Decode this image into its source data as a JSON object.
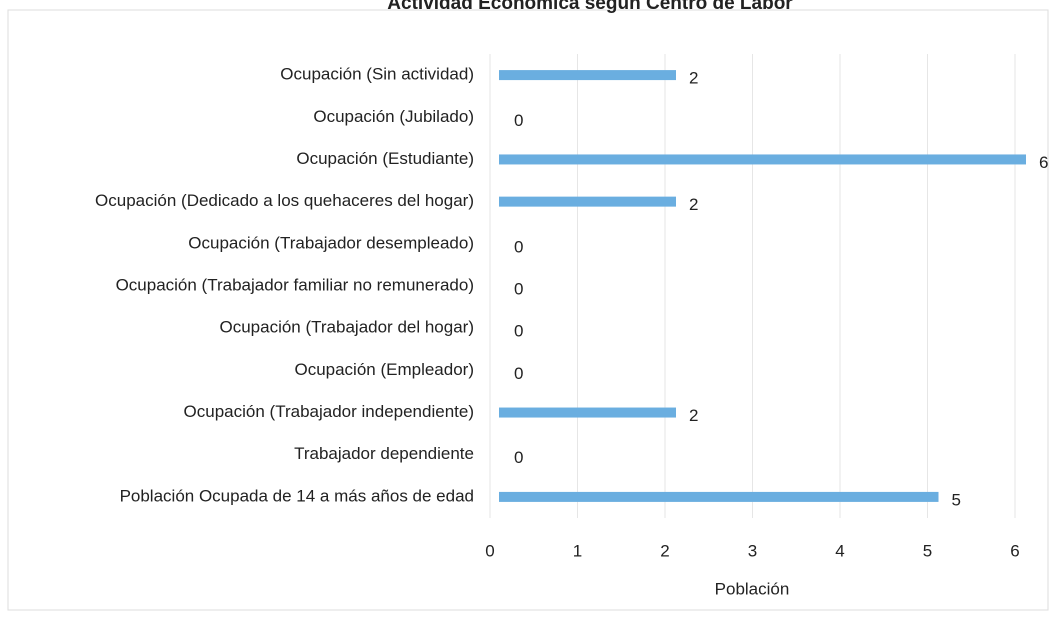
{
  "chart_data": {
    "type": "bar",
    "orientation": "horizontal",
    "title": "Actividad Económica según Centro de Labor",
    "x_label": "Población",
    "categories": [
      "Ocupación (Sin actividad)",
      "Ocupación (Jubilado)",
      "Ocupación (Estudiante)",
      "Ocupación (Dedicado a los quehaceres del hogar)",
      "Ocupación (Trabajador desempleado)",
      "Ocupación (Trabajador familiar no remunerado)",
      "Ocupación (Trabajador del hogar)",
      "Ocupación (Empleador)",
      "Ocupación (Trabajador independiente)",
      "Trabajador dependiente",
      "Población Ocupada de 14 a más años de edad"
    ],
    "values": [
      2,
      0,
      6,
      2,
      0,
      0,
      0,
      0,
      2,
      0,
      5
    ],
    "color": "#6aaee0",
    "xlim": [
      0,
      6
    ],
    "xticks": [
      0,
      1,
      2,
      3,
      4,
      5,
      6
    ],
    "grid": true
  }
}
